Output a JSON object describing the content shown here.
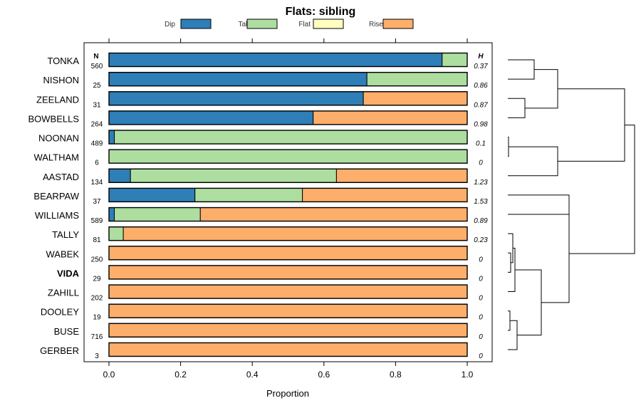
{
  "chart_data": {
    "type": "bar",
    "orientation": "horizontal",
    "stacked": true,
    "title": "Flats: sibling",
    "xlabel": "Proportion",
    "ylabel": "",
    "xlim": [
      0,
      1
    ],
    "xticks": [
      "0.0",
      "0.2",
      "0.4",
      "0.6",
      "0.8",
      "1.0"
    ],
    "n_header": "N",
    "h_header": "H",
    "legend": [
      "Dip",
      "Talf",
      "Flat",
      "Rise"
    ],
    "legend_position": "top",
    "colors": {
      "Dip": "#2e7eb8",
      "Talf": "#addea0",
      "Flat": "#ffffc0",
      "Rise": "#fdae6b"
    },
    "categories": [
      "TONKA",
      "NISHON",
      "ZEELAND",
      "BOWBELLS",
      "NOONAN",
      "WALTHAM",
      "AASTAD",
      "BEARPAW",
      "WILLIAMS",
      "TALLY",
      "WABEK",
      "VIDA",
      "ZAHILL",
      "DOOLEY",
      "BUSE",
      "GERBER"
    ],
    "highlighted": "VIDA",
    "n": [
      "560",
      "25",
      "31",
      "264",
      "489",
      "6",
      "134",
      "37",
      "589",
      "81",
      "250",
      "29",
      "202",
      "19",
      "716",
      "3"
    ],
    "h": [
      "0.37",
      "0.86",
      "0.87",
      "0.98",
      "0.1",
      "0",
      "1.23",
      "1.53",
      "0.89",
      "0.23",
      "0",
      "0",
      "0",
      "0",
      "0",
      "0"
    ],
    "series": [
      {
        "name": "Dip",
        "values": [
          0.93,
          0.72,
          0.71,
          0.57,
          0.015,
          0,
          0.06,
          0.24,
          0.015,
          0,
          0,
          0,
          0,
          0,
          0,
          0
        ]
      },
      {
        "name": "Talf",
        "values": [
          0.07,
          0.28,
          0,
          0,
          0.985,
          1.0,
          0.575,
          0.3,
          0.24,
          0.04,
          0,
          0,
          0,
          0,
          0,
          0
        ]
      },
      {
        "name": "Flat",
        "values": [
          0,
          0,
          0,
          0,
          0,
          0,
          0,
          0,
          0,
          0,
          0,
          0,
          0,
          0,
          0,
          0
        ]
      },
      {
        "name": "Rise",
        "values": [
          0,
          0,
          0.29,
          0.43,
          0,
          0,
          0.365,
          0.46,
          0.745,
          0.96,
          1.0,
          1.0,
          1.0,
          1.0,
          1.0,
          1.0
        ]
      }
    ],
    "dendrogram": true
  }
}
